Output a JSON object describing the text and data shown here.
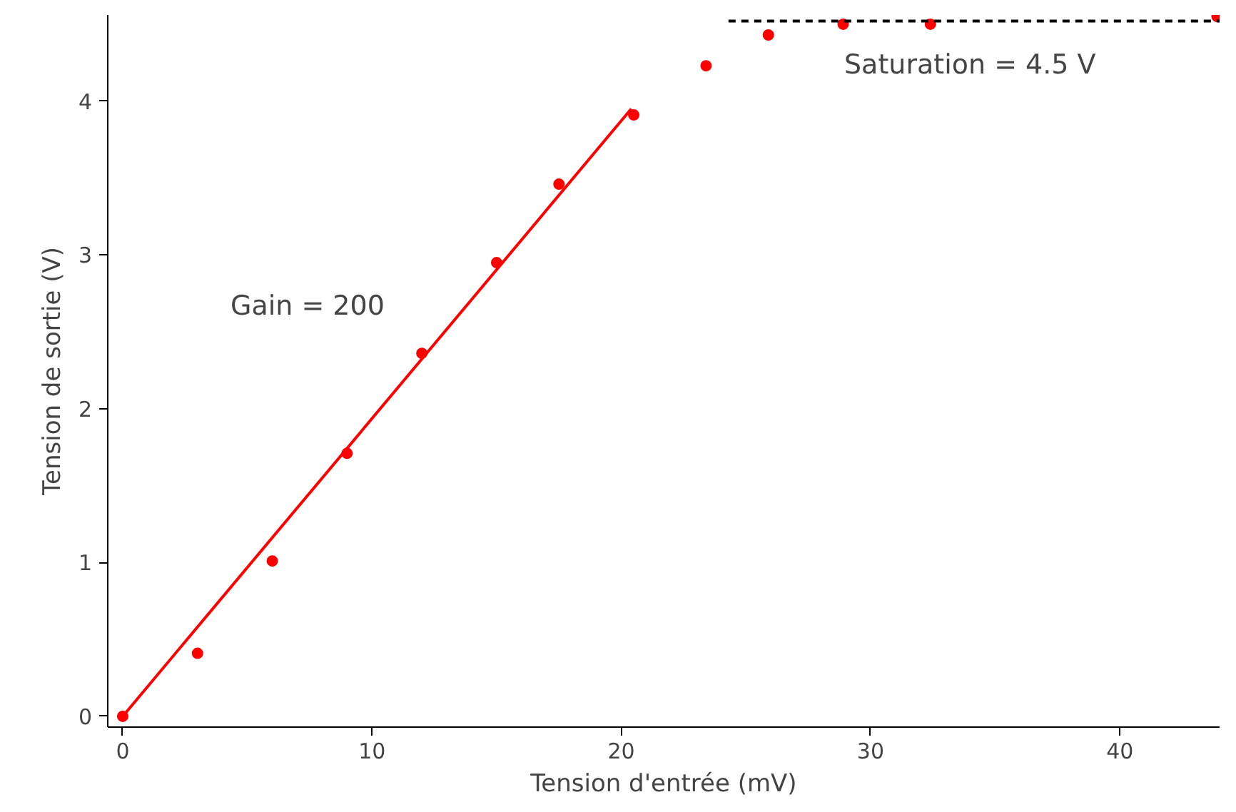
{
  "chart_data": {
    "type": "scatter",
    "xlabel": "Tension d'entrée (mV)",
    "ylabel": "Tension de sortie (V)",
    "xlim": [
      -0.6,
      44.0
    ],
    "ylim": [
      -0.07,
      4.56
    ],
    "xticks": [
      0,
      10,
      20,
      30,
      40
    ],
    "yticks": [
      0,
      1,
      2,
      3,
      4
    ],
    "grid": false,
    "marker": "circle",
    "series": [
      {
        "color": "#ff0000",
        "x": [
          0,
          3,
          6,
          9,
          12,
          15,
          17.5,
          20.5,
          23.4,
          25.9,
          28.9,
          32.4,
          43.9
        ],
        "values": [
          0,
          0.41,
          1.01,
          1.71,
          2.36,
          2.95,
          3.46,
          3.91,
          4.23,
          4.43,
          4.5,
          4.5,
          4.55
        ]
      },
      {
        "type": "line",
        "color": "#ff0000",
        "line_style": "solid",
        "marker": "none",
        "x": [
          0,
          20.4
        ],
        "values": [
          0,
          3.95
        ]
      },
      {
        "type": "line",
        "color": "#000000",
        "line_style": "dashed",
        "marker": "none",
        "x": [
          24.3,
          44.0
        ],
        "values": [
          4.52,
          4.52
        ]
      }
    ],
    "annotations": [
      "Gain = 200",
      "Saturation = 4.5 V"
    ]
  }
}
